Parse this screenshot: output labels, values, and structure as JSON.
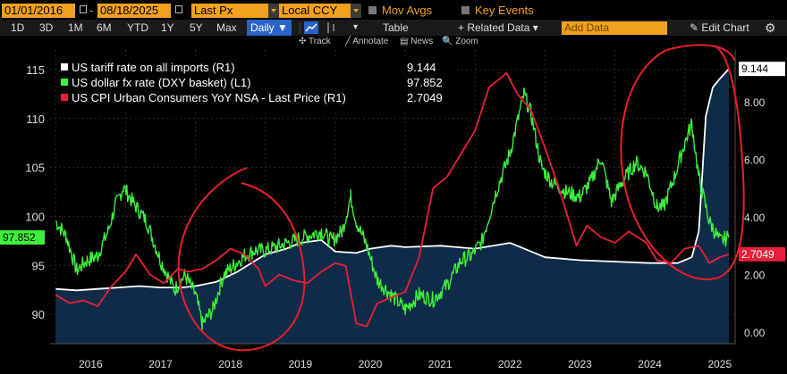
{
  "toolbar": {
    "start_date": "01/01/2016",
    "end_date": "08/18/2025",
    "field": "Last Px",
    "currency": "Local CCY",
    "mov_avgs": "Mov Avgs",
    "key_events": "Key Events",
    "ranges": [
      "1D",
      "3D",
      "1M",
      "6M",
      "YTD",
      "1Y",
      "5Y",
      "Max"
    ],
    "frequency": "Daily ▼",
    "table": "Table",
    "related_data": "+ Related Data ▾",
    "add_data_placeholder": "Add Data",
    "edit_chart": "✎ Edit Chart",
    "tools": [
      "✣ Track",
      "╱ Annotate",
      "▤ News",
      "🔍 Zoom"
    ]
  },
  "chart_data": {
    "type": "line",
    "x_range": [
      "2016-01-01",
      "2025-08-18"
    ],
    "x_ticks": [
      "2016",
      "2017",
      "2018",
      "2019",
      "2020",
      "2021",
      "2022",
      "2023",
      "2024",
      "2025"
    ],
    "left_axis": {
      "ticks": [
        90,
        95,
        100,
        105,
        110,
        115
      ],
      "range": [
        87,
        117
      ]
    },
    "right_axis": {
      "ticks": [
        "0.00",
        "2.00",
        "4.00",
        "6.00",
        "8.00"
      ],
      "range": [
        -0.4,
        9.8
      ]
    },
    "legend": [
      {
        "name": "US tariff rate on all imports (R1)",
        "last": "9.144",
        "color": "#ffffff"
      },
      {
        "name": "US dollar fx rate (DXY basket) (L1)",
        "last": "97.852",
        "color": "#3cf03c"
      },
      {
        "name": "US CPI Urban Consumers YoY NSA - Last Price (R1)",
        "last": "2.7049",
        "color": "#e8203c"
      }
    ],
    "axis_tags": [
      {
        "value": "9.144",
        "axis": "right",
        "bg": "#ffffff",
        "fg": "#000000",
        "level": 9.144
      },
      {
        "value": "97.852",
        "axis": "left",
        "bg": "#3cf03c",
        "fg": "#000000",
        "level": 97.852
      },
      {
        "value": "2.7049",
        "axis": "right",
        "bg": "#e8203c",
        "fg": "#ffffff",
        "level": 2.7049
      }
    ],
    "series": [
      {
        "name": "US tariff rate on all imports (R1)",
        "axis": "right",
        "color": "#ffffff",
        "area": "#0f2b4a",
        "x": [
          2016.0,
          2016.3,
          2016.6,
          2016.9,
          2017.2,
          2017.5,
          2017.8,
          2018.0,
          2018.3,
          2018.6,
          2018.8,
          2019.0,
          2019.3,
          2019.5,
          2019.8,
          2020.0,
          2020.3,
          2020.5,
          2020.8,
          2021.0,
          2021.5,
          2022.0,
          2022.5,
          2023.0,
          2023.5,
          2024.0,
          2024.5,
          2024.9,
          2025.1,
          2025.2,
          2025.3,
          2025.4,
          2025.5,
          2025.63
        ],
        "y": [
          1.5,
          1.45,
          1.5,
          1.55,
          1.6,
          1.55,
          1.55,
          1.6,
          1.75,
          2.1,
          2.4,
          2.7,
          2.9,
          3.1,
          3.2,
          2.8,
          2.75,
          2.9,
          3.0,
          2.95,
          3.0,
          2.9,
          3.1,
          2.6,
          2.5,
          2.45,
          2.4,
          2.4,
          2.6,
          3.5,
          7.5,
          8.5,
          8.8,
          9.144
        ]
      },
      {
        "name": "US dollar fx rate (DXY basket) (L1)",
        "axis": "left",
        "color": "#3cf03c",
        "x": [
          2016.0,
          2016.15,
          2016.3,
          2016.45,
          2016.6,
          2016.75,
          2016.85,
          2016.97,
          2017.1,
          2017.3,
          2017.5,
          2017.7,
          2017.85,
          2018.0,
          2018.1,
          2018.25,
          2018.4,
          2018.55,
          2018.7,
          2018.85,
          2019.0,
          2019.2,
          2019.4,
          2019.6,
          2019.8,
          2019.95,
          2020.1,
          2020.22,
          2020.3,
          2020.45,
          2020.6,
          2020.8,
          2021.0,
          2021.2,
          2021.4,
          2021.6,
          2021.8,
          2021.95,
          2022.1,
          2022.3,
          2022.5,
          2022.7,
          2022.8,
          2022.95,
          2023.1,
          2023.3,
          2023.5,
          2023.65,
          2023.8,
          2023.95,
          2024.1,
          2024.3,
          2024.45,
          2024.6,
          2024.7,
          2024.85,
          2025.0,
          2025.1,
          2025.2,
          2025.35,
          2025.5,
          2025.63
        ],
        "y": [
          99.5,
          98.0,
          94.5,
          95.5,
          96.0,
          98.5,
          101.0,
          103.0,
          101.5,
          99.5,
          95.5,
          92.5,
          94.0,
          92.0,
          89.0,
          90.5,
          94.0,
          95.0,
          96.0,
          96.5,
          96.5,
          97.0,
          97.5,
          98.0,
          98.5,
          97.5,
          98.5,
          102.0,
          99.5,
          97.0,
          93.5,
          92.0,
          90.5,
          92.0,
          91.5,
          93.0,
          95.5,
          96.0,
          97.5,
          102.5,
          106.5,
          112.5,
          110.5,
          105.0,
          103.5,
          102.5,
          102.0,
          103.5,
          106.0,
          101.5,
          103.5,
          105.5,
          104.5,
          101.0,
          101.0,
          104.0,
          107.5,
          109.5,
          104.0,
          99.5,
          97.5,
          97.852
        ]
      },
      {
        "name": "US CPI Urban Consumers YoY NSA - Last Price (R1)",
        "axis": "right",
        "color": "#e8203c",
        "x": [
          2016.0,
          2016.2,
          2016.4,
          2016.6,
          2016.8,
          2017.0,
          2017.15,
          2017.35,
          2017.55,
          2017.75,
          2017.9,
          2018.1,
          2018.3,
          2018.5,
          2018.7,
          2018.9,
          2019.0,
          2019.2,
          2019.4,
          2019.6,
          2019.8,
          2020.0,
          2020.15,
          2020.3,
          2020.45,
          2020.6,
          2020.8,
          2021.0,
          2021.2,
          2021.4,
          2021.6,
          2021.8,
          2022.0,
          2022.2,
          2022.45,
          2022.6,
          2022.8,
          2023.0,
          2023.2,
          2023.45,
          2023.6,
          2023.8,
          2024.0,
          2024.2,
          2024.45,
          2024.6,
          2024.8,
          2025.0,
          2025.2,
          2025.35,
          2025.5,
          2025.63
        ],
        "y": [
          1.3,
          1.0,
          1.1,
          0.9,
          1.6,
          2.1,
          2.7,
          2.0,
          1.7,
          2.2,
          2.1,
          2.2,
          2.5,
          2.9,
          2.7,
          2.2,
          1.6,
          2.0,
          1.8,
          1.7,
          2.1,
          2.4,
          2.3,
          0.3,
          0.2,
          1.0,
          1.2,
          1.4,
          2.6,
          5.0,
          5.4,
          6.2,
          7.0,
          8.5,
          9.0,
          8.3,
          7.7,
          6.4,
          5.0,
          3.0,
          3.7,
          3.3,
          3.1,
          3.5,
          3.1,
          2.5,
          2.4,
          2.9,
          3.0,
          2.4,
          2.6,
          2.7049
        ]
      }
    ]
  }
}
